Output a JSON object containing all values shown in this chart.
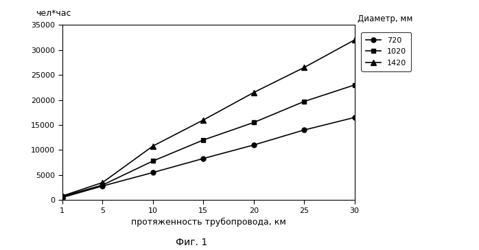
{
  "x": [
    1,
    5,
    10,
    15,
    20,
    25,
    30
  ],
  "y_720": [
    500,
    2800,
    5500,
    8300,
    11000,
    14000,
    16500
  ],
  "y_1020": [
    700,
    3000,
    7800,
    12000,
    15500,
    19700,
    23000
  ],
  "y_1420": [
    800,
    3500,
    10800,
    16000,
    21500,
    26500,
    32000
  ],
  "xlabel": "протяженность трубопровода, км",
  "ylabel": "чел*час",
  "legend_title": "Диаметр, мм",
  "legend_labels": [
    "720",
    "1020",
    "1420"
  ],
  "fig_caption": "Фиг. 1",
  "xlim": [
    1,
    30
  ],
  "ylim": [
    0,
    35000
  ],
  "xticks": [
    1,
    5,
    10,
    15,
    20,
    25,
    30
  ],
  "yticks": [
    0,
    5000,
    10000,
    15000,
    20000,
    25000,
    30000,
    35000
  ],
  "ytick_labels": [
    "0",
    "5000",
    "10000",
    "15000",
    "20000",
    "25000",
    "30000",
    "35000"
  ],
  "line_color": "#000000",
  "bg_color": "#ffffff",
  "plot_bg_color": "#ffffff"
}
